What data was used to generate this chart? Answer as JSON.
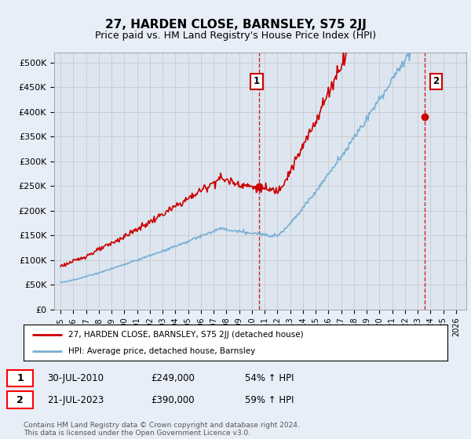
{
  "title": "27, HARDEN CLOSE, BARNSLEY, S75 2JJ",
  "subtitle": "Price paid vs. HM Land Registry's House Price Index (HPI)",
  "ylim": [
    0,
    520000
  ],
  "yticks": [
    0,
    50000,
    100000,
    150000,
    200000,
    250000,
    300000,
    350000,
    400000,
    450000,
    500000
  ],
  "ytick_labels": [
    "£0",
    "£50K",
    "£100K",
    "£150K",
    "£200K",
    "£250K",
    "£300K",
    "£350K",
    "£400K",
    "£450K",
    "£500K"
  ],
  "grid_color": "#cccccc",
  "bg_color": "#e8eef8",
  "plot_bg": "#dde6f0",
  "line_color_red": "#cc0000",
  "line_color_blue": "#7ab0d4",
  "transaction1_year": 2010.57,
  "transaction1_price": 249000,
  "transaction2_year": 2023.54,
  "transaction2_price": 390000,
  "vline_color": "#cc0000",
  "marker_color": "#cc0000",
  "legend_label_red": "27, HARDEN CLOSE, BARNSLEY, S75 2JJ (detached house)",
  "legend_label_blue": "HPI: Average price, detached house, Barnsley",
  "table_data": [
    [
      "1",
      "30-JUL-2010",
      "£249,000",
      "54% ↑ HPI"
    ],
    [
      "2",
      "21-JUL-2023",
      "£390,000",
      "59% ↑ HPI"
    ]
  ],
  "footer": "Contains HM Land Registry data © Crown copyright and database right 2024.\nThis data is licensed under the Open Government Licence v3.0.",
  "title_fontsize": 11,
  "subtitle_fontsize": 9,
  "tick_fontsize": 8
}
